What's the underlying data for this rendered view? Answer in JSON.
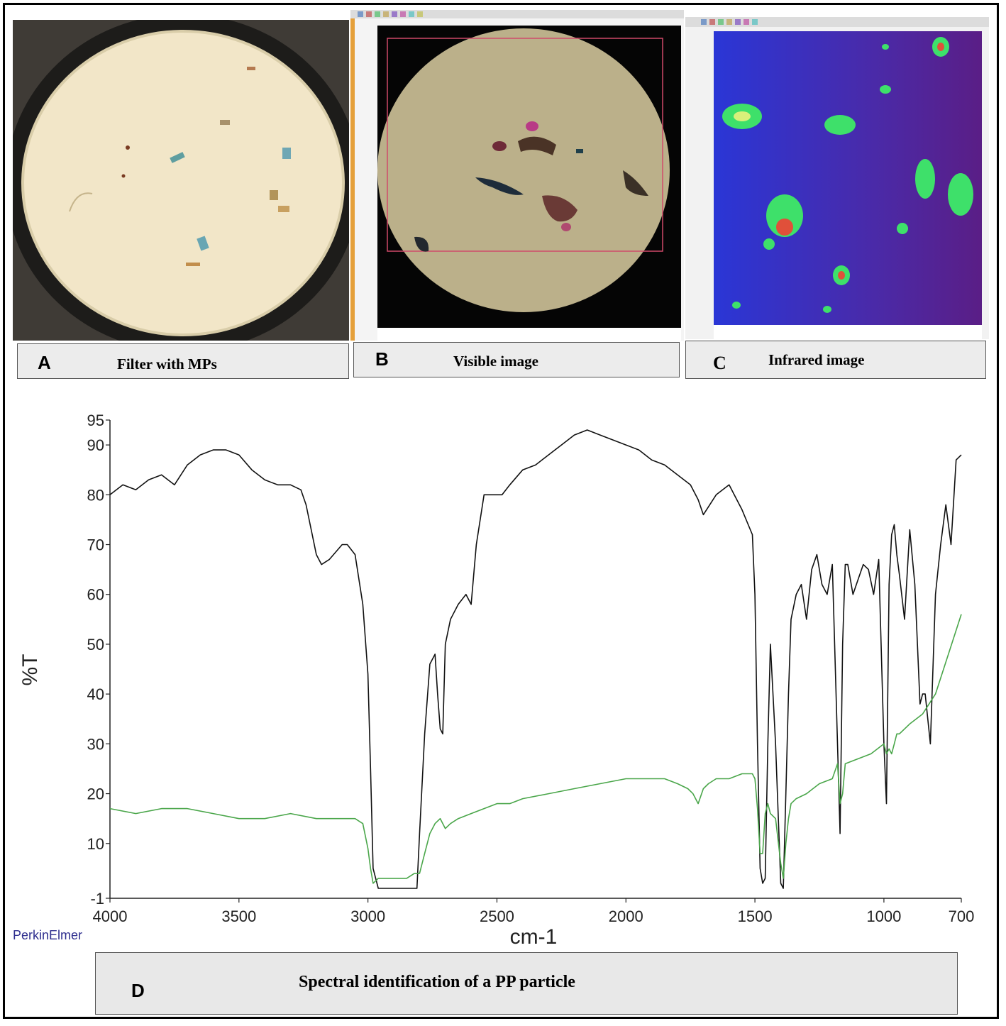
{
  "panels": {
    "A": {
      "letter": "A",
      "caption": "Filter with MPs"
    },
    "B": {
      "letter": "B",
      "caption": "Visible image"
    },
    "C": {
      "letter": "C",
      "caption": "Infrared image"
    },
    "D": {
      "letter": "D",
      "caption": "Spectral identification of a PP particle"
    }
  },
  "brand": "PerkinElmer",
  "colors": {
    "sample_line": "#111111",
    "reference_line": "#4aa64a",
    "frame": "#000000"
  },
  "chart_data": {
    "type": "line",
    "title": "",
    "xlabel": "cm-1",
    "ylabel": "%T",
    "xlim": [
      4000,
      700
    ],
    "ylim": [
      -1,
      95
    ],
    "x_reversed": true,
    "x_ticks": [
      "4000",
      "3500",
      "3000",
      "2500",
      "2000",
      "1500",
      "1000",
      "700"
    ],
    "y_ticks": [
      "-1",
      "10",
      "20",
      "30",
      "40",
      "50",
      "60",
      "70",
      "80",
      "90",
      "95"
    ],
    "grid": false,
    "series": [
      {
        "x": [
          4000,
          3950,
          3900,
          3850,
          3800,
          3750,
          3700,
          3650,
          3600,
          3550,
          3500,
          3450,
          3400,
          3350,
          3300,
          3260,
          3240,
          3200,
          3180,
          3150,
          3100,
          3080,
          3050,
          3020,
          3000,
          2990,
          2980,
          2960,
          2950,
          2920,
          2900,
          2870,
          2850,
          2840,
          2820,
          2810,
          2800,
          2780,
          2760,
          2740,
          2730,
          2720,
          2710,
          2700,
          2680,
          2650,
          2620,
          2600,
          2580,
          2550,
          2500,
          2480,
          2450,
          2400,
          2350,
          2300,
          2250,
          2200,
          2150,
          2100,
          2050,
          2000,
          1950,
          1900,
          1850,
          1800,
          1750,
          1720,
          1700,
          1650,
          1600,
          1550,
          1510,
          1500,
          1490,
          1480,
          1470,
          1460,
          1450,
          1440,
          1420,
          1400,
          1390,
          1380,
          1370,
          1360,
          1340,
          1320,
          1300,
          1280,
          1260,
          1240,
          1220,
          1200,
          1180,
          1170,
          1160,
          1150,
          1140,
          1120,
          1100,
          1080,
          1060,
          1040,
          1020,
          1000,
          990,
          980,
          970,
          960,
          950,
          940,
          920,
          900,
          880,
          860,
          850,
          840,
          820,
          800,
          780,
          760,
          740,
          720,
          700
        ],
        "values": [
          80,
          82,
          81,
          83,
          84,
          82,
          86,
          88,
          89,
          89,
          88,
          85,
          83,
          82,
          82,
          81,
          78,
          68,
          66,
          67,
          70,
          70,
          68,
          58,
          44,
          25,
          5,
          1,
          1,
          1,
          1,
          1,
          1,
          1,
          1,
          1,
          12,
          32,
          46,
          48,
          40,
          33,
          32,
          50,
          55,
          58,
          60,
          58,
          70,
          80,
          80,
          80,
          82,
          85,
          86,
          88,
          90,
          92,
          93,
          92,
          91,
          90,
          89,
          87,
          86,
          84,
          82,
          79,
          76,
          80,
          82,
          77,
          72,
          60,
          30,
          5,
          2,
          3,
          30,
          50,
          30,
          2,
          1,
          20,
          40,
          55,
          60,
          62,
          55,
          65,
          68,
          62,
          60,
          66,
          30,
          12,
          50,
          66,
          66,
          60,
          63,
          66,
          65,
          60,
          67,
          30,
          18,
          62,
          72,
          74,
          68,
          64,
          55,
          73,
          62,
          38,
          40,
          40,
          30,
          60,
          70,
          78,
          70,
          87,
          88
        ]
      },
      {
        "x": [
          4000,
          3900,
          3800,
          3700,
          3600,
          3500,
          3400,
          3300,
          3200,
          3100,
          3050,
          3020,
          3000,
          2990,
          2980,
          2960,
          2900,
          2850,
          2820,
          2800,
          2780,
          2760,
          2740,
          2720,
          2700,
          2680,
          2650,
          2600,
          2550,
          2500,
          2450,
          2400,
          2300,
          2200,
          2100,
          2000,
          1900,
          1850,
          1800,
          1760,
          1740,
          1720,
          1700,
          1680,
          1650,
          1600,
          1550,
          1510,
          1500,
          1490,
          1480,
          1470,
          1460,
          1450,
          1440,
          1420,
          1400,
          1390,
          1380,
          1370,
          1360,
          1340,
          1300,
          1250,
          1200,
          1180,
          1170,
          1160,
          1150,
          1100,
          1050,
          1000,
          990,
          980,
          970,
          960,
          950,
          940,
          900,
          850,
          800,
          750,
          700
        ],
        "values": [
          17,
          16,
          17,
          17,
          16,
          15,
          15,
          16,
          15,
          15,
          15,
          14,
          9,
          5,
          2,
          3,
          3,
          3,
          4,
          4,
          8,
          12,
          14,
          15,
          13,
          14,
          15,
          16,
          17,
          18,
          18,
          19,
          20,
          21,
          22,
          23,
          23,
          23,
          22,
          21,
          20,
          18,
          21,
          22,
          23,
          23,
          24,
          24,
          23,
          17,
          8,
          8,
          16,
          18,
          16,
          15,
          6,
          3,
          10,
          15,
          18,
          19,
          20,
          22,
          23,
          26,
          18,
          20,
          26,
          27,
          28,
          30,
          28,
          29,
          28,
          30,
          32,
          32,
          34,
          36,
          40,
          48,
          56
        ]
      }
    ]
  }
}
